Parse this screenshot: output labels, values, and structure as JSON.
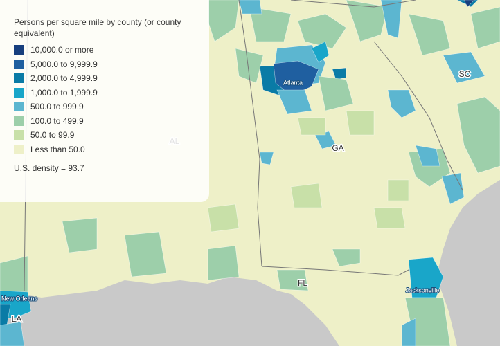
{
  "legend": {
    "title": "Persons per square mile by county (or county equivalent)",
    "items": [
      {
        "label": "10,000.0 or more",
        "color": "#173f7e"
      },
      {
        "label": "5,000.0 to 9,999.9",
        "color": "#1f5fa0"
      },
      {
        "label": "2,000.0 to 4,999.9",
        "color": "#0a7ba6"
      },
      {
        "label": "1,000.0 to 1,999.9",
        "color": "#19a6c9"
      },
      {
        "label": "500.0 to 999.9",
        "color": "#5cb6d0"
      },
      {
        "label": "100.0 to 499.9",
        "color": "#9dcfaa"
      },
      {
        "label": "50.0 to 99.9",
        "color": "#c8e0a8"
      },
      {
        "label": "Less than 50.0",
        "color": "#eef0c8"
      }
    ],
    "note": "U.S. density = 93.7"
  },
  "map": {
    "states": [
      "AL",
      "GA",
      "SC",
      "FL",
      "LA"
    ],
    "cities": [
      "Atlanta",
      "Jacksonville",
      "New Orleans"
    ]
  }
}
